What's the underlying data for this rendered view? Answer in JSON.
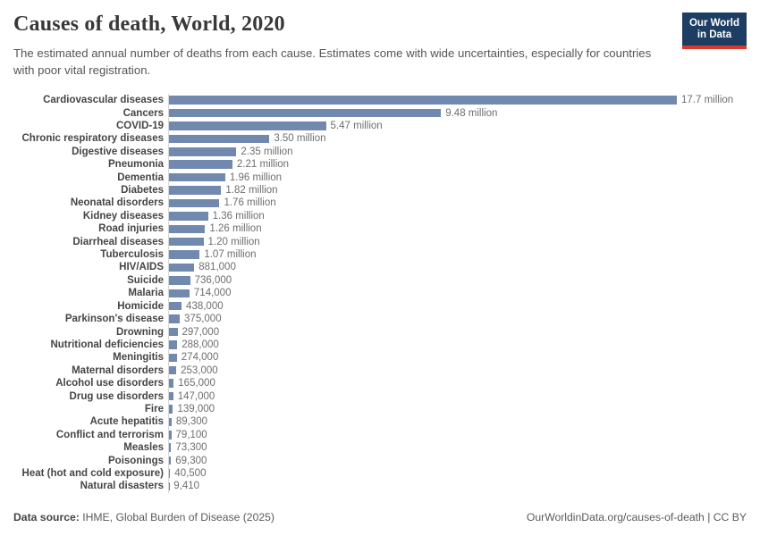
{
  "header": {
    "title": "Causes of death, World, 2020",
    "subtitle": "The estimated annual number of deaths from each cause. Estimates come with wide uncertainties, especially for countries with poor vital registration.",
    "logo": {
      "line1": "Our World",
      "line2": "in Data",
      "bg_color": "#1d3d63",
      "accent_color": "#d8392f"
    }
  },
  "chart_data": {
    "type": "bar",
    "orientation": "horizontal",
    "title": "Causes of death, World, 2020",
    "xlabel": "",
    "ylabel": "",
    "grid": false,
    "legend": false,
    "bar_color": "#7189ae",
    "xlim": [
      0,
      17700000
    ],
    "categories": [
      "Cardiovascular diseases",
      "Cancers",
      "COVID-19",
      "Chronic respiratory diseases",
      "Digestive diseases",
      "Pneumonia",
      "Dementia",
      "Diabetes",
      "Neonatal disorders",
      "Kidney diseases",
      "Road injuries",
      "Diarrheal diseases",
      "Tuberculosis",
      "HIV/AIDS",
      "Suicide",
      "Malaria",
      "Homicide",
      "Parkinson's disease",
      "Drowning",
      "Nutritional deficiencies",
      "Meningitis",
      "Maternal disorders",
      "Alcohol use disorders",
      "Drug use disorders",
      "Fire",
      "Acute hepatitis",
      "Conflict and terrorism",
      "Measles",
      "Poisonings",
      "Heat (hot and cold exposure)",
      "Natural disasters"
    ],
    "values": [
      17700000,
      9480000,
      5470000,
      3500000,
      2350000,
      2210000,
      1960000,
      1820000,
      1760000,
      1360000,
      1260000,
      1200000,
      1070000,
      881000,
      736000,
      714000,
      438000,
      375000,
      297000,
      288000,
      274000,
      253000,
      165000,
      147000,
      139000,
      89300,
      79100,
      73300,
      69300,
      40500,
      9410
    ],
    "value_labels": [
      "17.7 million",
      "9.48 million",
      "5.47 million",
      "3.50 million",
      "2.35 million",
      "2.21 million",
      "1.96 million",
      "1.82 million",
      "1.76 million",
      "1.36 million",
      "1.26 million",
      "1.20 million",
      "1.07 million",
      "881,000",
      "736,000",
      "714,000",
      "438,000",
      "375,000",
      "297,000",
      "288,000",
      "274,000",
      "253,000",
      "165,000",
      "147,000",
      "139,000",
      "89,300",
      "79,100",
      "73,300",
      "69,300",
      "40,500",
      "9,410"
    ]
  },
  "footer": {
    "datasource_label": "Data source:",
    "datasource": "IHME, Global Burden of Disease (2025)",
    "attribution": "OurWorldinData.org/causes-of-death | CC BY"
  }
}
